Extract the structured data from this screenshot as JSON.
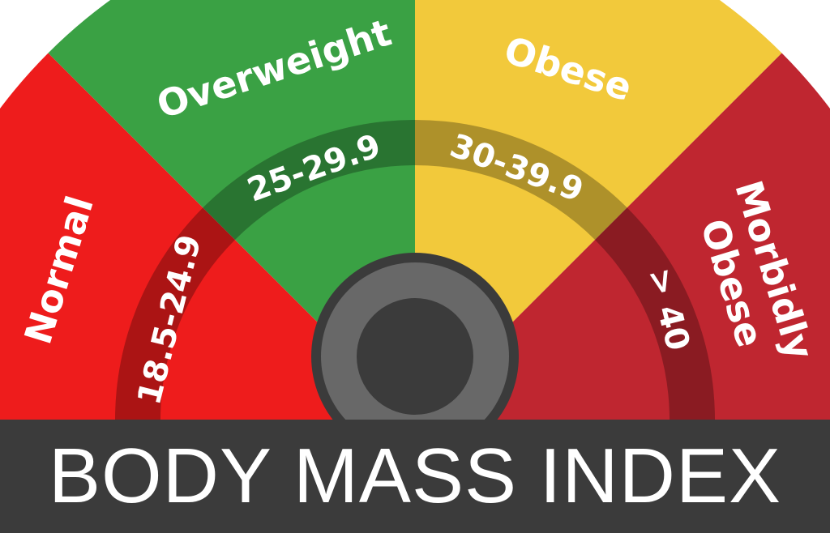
{
  "title": "BODY MASS INDEX",
  "categories": [
    {
      "label": "Normal",
      "range": "18.5-24.9",
      "color": "#ee1c1c"
    },
    {
      "label": "Overweight",
      "range": "25-29.9",
      "color": "#3aa144"
    },
    {
      "label": "Obese",
      "range": "30-39.9",
      "color": "#f2c93b"
    },
    {
      "label": "Morbidly Obese",
      "label_lines": [
        "Morbidly",
        "Obese"
      ],
      "range": "> 40",
      "color": "#bf2630"
    }
  ],
  "colors": {
    "band_overlay": "#000000",
    "hub_outer": "#3b3b3b",
    "hub_ring": "#686868",
    "hub_center": "#3b3b3b",
    "title_bar": "#3b3b3b"
  }
}
